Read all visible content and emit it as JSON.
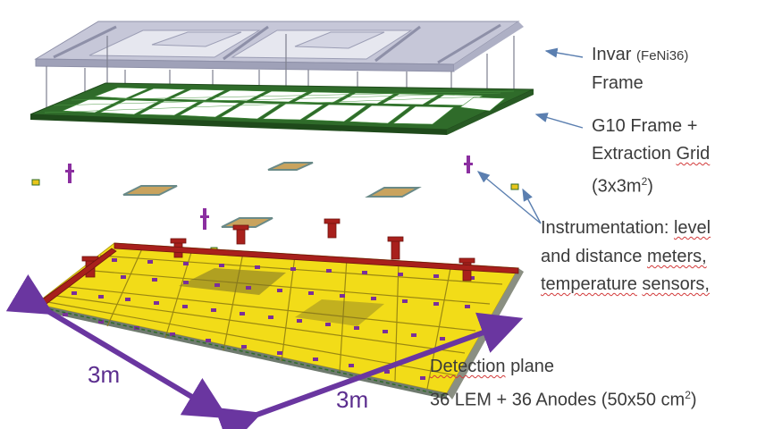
{
  "labels": {
    "invar_line1": "Invar",
    "invar_formula": "(FeNi36)",
    "invar_line2": "Frame",
    "g10_line1": "G10 Frame +",
    "g10_line2_a": "Extraction",
    "g10_line2_b": "Grid",
    "g10_line3_a": "(3x3m",
    "g10_line3_sup": "2",
    "g10_line3_b": ")",
    "instr_line1_a": "Instrumentation:",
    "instr_line1_b": "level",
    "instr_line2_a": "and distance",
    "instr_line2_b": "meters,",
    "instr_line3_a": "temperature",
    "instr_line3_b": "sensors,",
    "det_line1_a": "Detection",
    "det_line1_b": "plane",
    "det_line2_a": "36 LEM + 36 Anodes (50x50 cm",
    "det_line2_sup": "2",
    "det_line2_b": ")"
  },
  "dimensions": {
    "left": "3m",
    "right": "3m"
  },
  "colors": {
    "invar_frame": "#b9bbd0",
    "g10_frame": "#2f6b2a",
    "detection_plane": "#f2dc18",
    "lem_rim": "#a8201c",
    "connectors": "#7a2f9a",
    "dimension_arrows": "#6a36a0",
    "pointer_arrows": "#5b7fb0"
  }
}
